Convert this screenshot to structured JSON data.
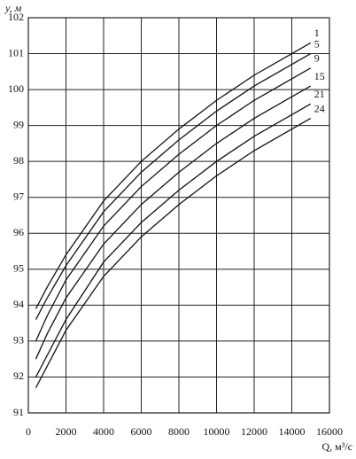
{
  "chart_data": {
    "type": "line",
    "y_label": "y, м",
    "x_label": "Q, м³/с",
    "x": [
      400,
      1000,
      2000,
      4000,
      6000,
      8000,
      10000,
      12000,
      14000,
      15000
    ],
    "series": [
      {
        "name": "1",
        "color": "#111111",
        "values": [
          93.9,
          94.5,
          95.4,
          96.9,
          98.0,
          98.9,
          99.7,
          100.4,
          101.0,
          101.3
        ]
      },
      {
        "name": "5",
        "color": "#111111",
        "values": [
          93.6,
          94.2,
          95.1,
          96.6,
          97.7,
          98.6,
          99.4,
          100.1,
          100.7,
          101.0
        ]
      },
      {
        "name": "9",
        "color": "#111111",
        "values": [
          93.0,
          93.7,
          94.7,
          96.2,
          97.3,
          98.2,
          99.0,
          99.7,
          100.3,
          100.6
        ]
      },
      {
        "name": "15",
        "color": "#111111",
        "values": [
          92.5,
          93.2,
          94.2,
          95.7,
          96.8,
          97.7,
          98.5,
          99.2,
          99.8,
          100.1
        ]
      },
      {
        "name": "21",
        "color": "#111111",
        "values": [
          92.0,
          92.6,
          93.6,
          95.2,
          96.3,
          97.2,
          98.0,
          98.7,
          99.3,
          99.6
        ]
      },
      {
        "name": "24",
        "color": "#111111",
        "values": [
          91.7,
          92.3,
          93.3,
          94.8,
          95.9,
          96.8,
          97.6,
          98.3,
          98.9,
          99.2
        ]
      }
    ],
    "xlim": [
      0,
      16000
    ],
    "xticks": [
      0,
      2000,
      4000,
      6000,
      8000,
      10000,
      12000,
      14000,
      16000
    ],
    "ylim": [
      91,
      102
    ],
    "yticks": [
      91,
      92,
      93,
      94,
      95,
      96,
      97,
      98,
      99,
      100,
      101,
      102
    ],
    "grid": true
  }
}
